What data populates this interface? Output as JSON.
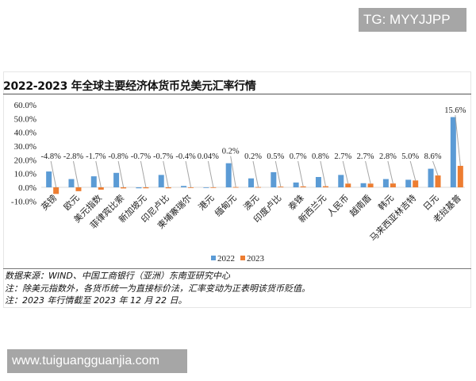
{
  "watermarks": {
    "top": "TG: MYYJJPP",
    "bottom": "www.tuiguangguanjia.com"
  },
  "notes": {
    "source": "数据来源：WIND、中国工商银行（亚洲）东南亚研究中心",
    "note1": "注：除美元指数外，各货币统一为直接标价法，汇率变动为正表明该货币贬值。",
    "note2": "注：2023 年行情截至 2023 年 12 月 22 日。"
  },
  "colors": {
    "s2022": "#5b9bd5",
    "s2023": "#ed7d31",
    "leader": "#a6a6a6"
  },
  "chart_data": {
    "type": "bar",
    "title": "2022-2023 年全球主要经济体货币兑美元汇率行情",
    "xlabel": "",
    "ylabel": "",
    "ylim": [
      -10,
      60
    ],
    "yticks": [
      "60.0%",
      "50.0%",
      "40.0%",
      "30.0%",
      "20.0%",
      "10.0%",
      "0.0%",
      "-10.0%"
    ],
    "grid": false,
    "legend_position": "bottom",
    "categories": [
      "英镑",
      "欧元",
      "美元指数",
      "菲律宾比索",
      "新加坡元",
      "印尼卢比",
      "柬埔寨瑞尔",
      "港元",
      "缅甸元",
      "澳元",
      "印度卢比",
      "泰铢",
      "新西兰元",
      "人民币",
      "越南盾",
      "韩元",
      "马来西亚林吉特",
      "日元",
      "老挝基普"
    ],
    "series": [
      {
        "name": "2022",
        "values": [
          11.5,
          6.0,
          8.0,
          10.5,
          -0.7,
          9.0,
          1.0,
          0.0,
          17.5,
          6.5,
          11.0,
          3.5,
          7.5,
          9.0,
          3.0,
          6.0,
          5.5,
          13.5,
          51.0
        ]
      },
      {
        "name": "2023",
        "values": [
          -4.8,
          -2.8,
          -1.7,
          -0.8,
          -0.7,
          -0.7,
          -0.4,
          0.04,
          0.2,
          0.2,
          0.5,
          0.7,
          0.8,
          2.7,
          2.7,
          2.8,
          5.0,
          8.6,
          15.6
        ]
      }
    ],
    "data_labels_2023": [
      "-4.8%",
      "-2.8%",
      "-1.7%",
      "-0.8%",
      "-0.7%",
      "-0.7%",
      "-0.4%",
      "0.04%",
      "0.2%",
      "0.2%",
      "0.5%",
      "0.7%",
      "0.8%",
      "2.7%",
      "2.7%",
      "2.8%",
      "5.0%",
      "8.6%",
      "15.6%"
    ]
  }
}
